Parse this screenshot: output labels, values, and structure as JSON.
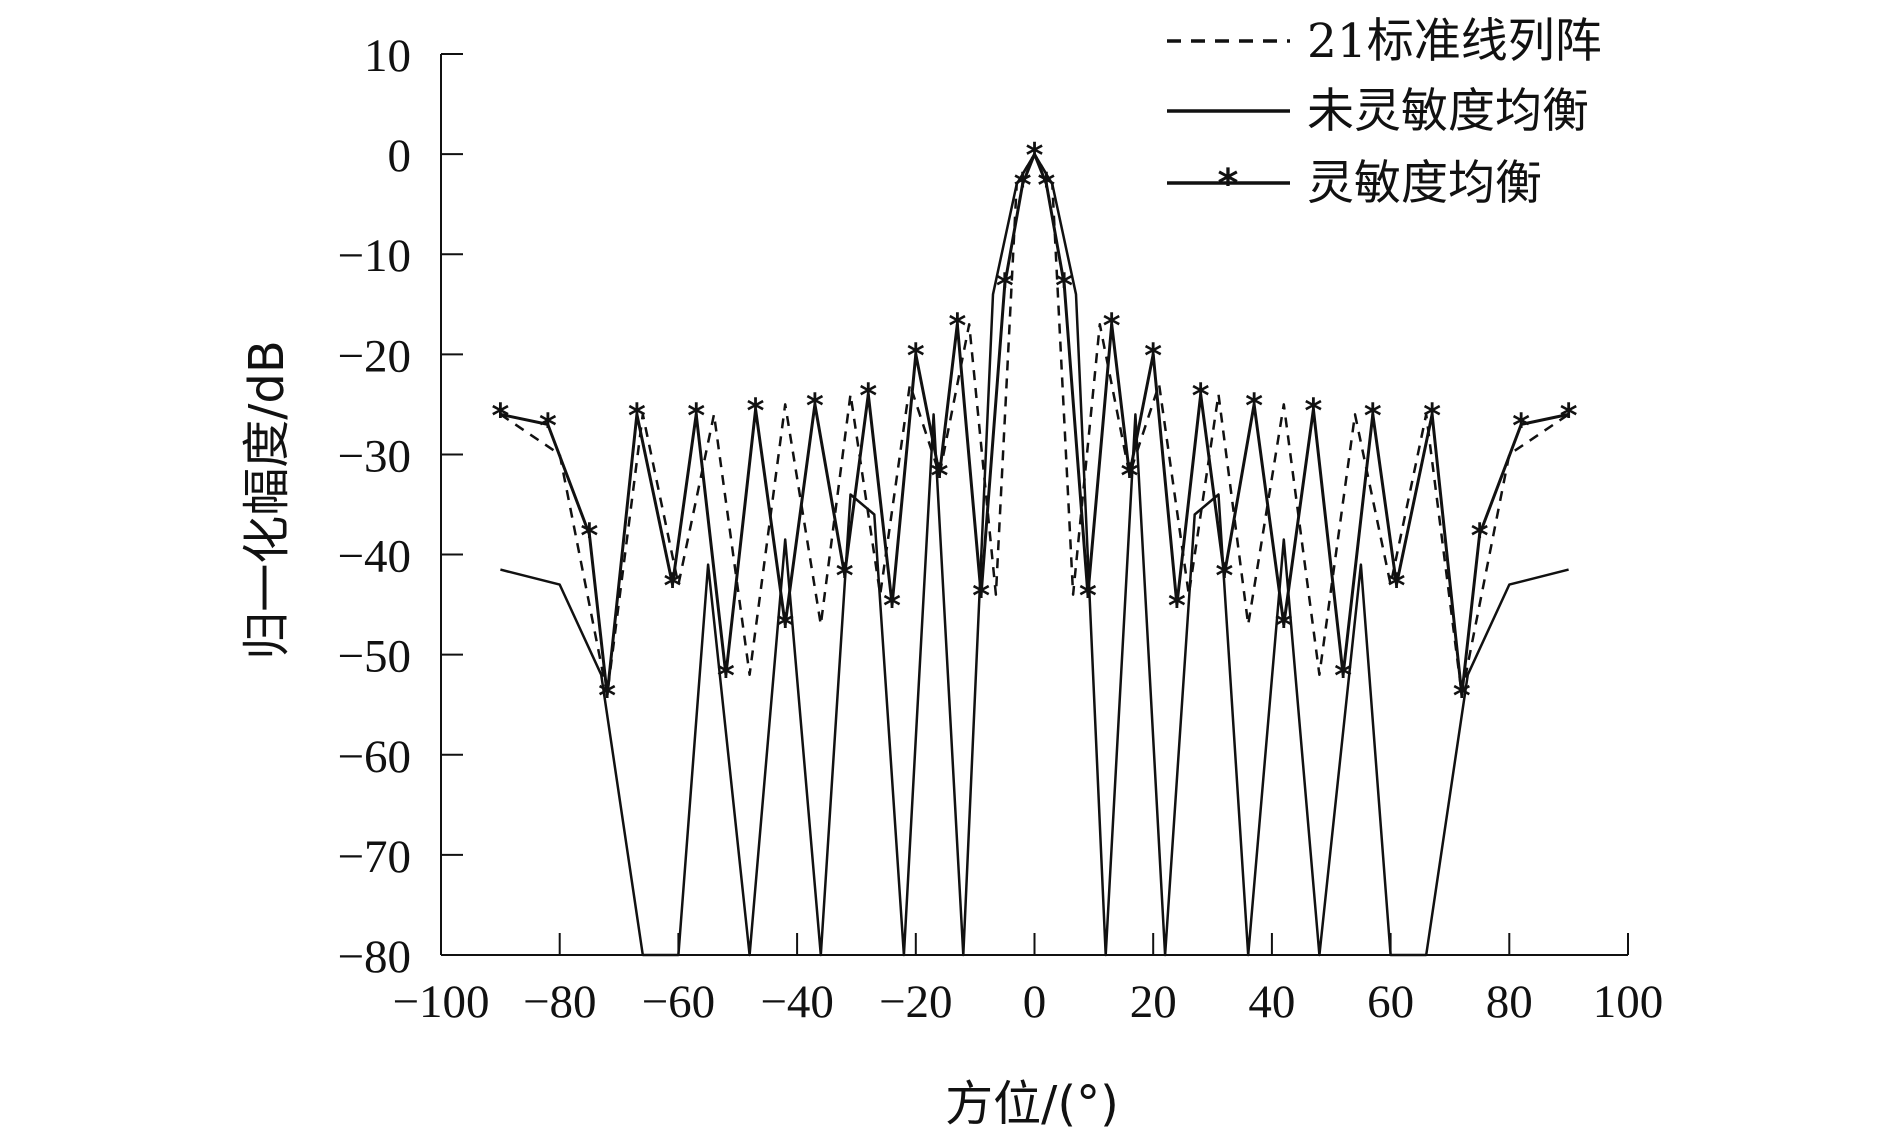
{
  "chart_data": {
    "type": "line",
    "xlabel": "方位/(°)",
    "ylabel": "归一化幅度/dB",
    "xlim": [
      -100,
      100
    ],
    "ylim": [
      -80,
      10
    ],
    "xticks": [
      "−100",
      "−80",
      "−60",
      "−40",
      "−20",
      "0",
      "20",
      "40",
      "60",
      "80",
      "100"
    ],
    "yticks": [
      "10",
      "0",
      "−10",
      "−20",
      "−30",
      "−40",
      "−50",
      "−60",
      "−70",
      "−80"
    ],
    "legend_position": "top-right",
    "series": [
      {
        "name": "21标准线列阵",
        "style": "dashed",
        "x": [
          -90,
          -80,
          -72,
          -66,
          -60,
          -54,
          -48,
          -42,
          -36,
          -31,
          -26,
          -21,
          -16,
          -11,
          -6.5,
          -3,
          0,
          3,
          6.5,
          11,
          16,
          21,
          26,
          31,
          36,
          42,
          48,
          54,
          60,
          66,
          72,
          80,
          90
        ],
        "values": [
          -26,
          -30,
          -54,
          -26,
          -43,
          -26,
          -52,
          -25,
          -47,
          -24,
          -44,
          -23,
          -32,
          -17,
          -44,
          -3,
          0,
          -3,
          -44,
          -17,
          -32,
          -23,
          -44,
          -24,
          -47,
          -25,
          -52,
          -26,
          -43,
          -26,
          -54,
          -30,
          -26
        ]
      },
      {
        "name": "未灵敏度均衡",
        "style": "solid",
        "x": [
          -90,
          -80,
          -73,
          -66,
          -60,
          -55,
          -48,
          -42,
          -36,
          -31,
          -27,
          -22,
          -17,
          -12,
          -7,
          -3,
          0,
          3,
          7,
          12,
          17,
          22,
          27,
          31,
          36,
          42,
          48,
          55,
          60,
          66,
          73,
          80,
          90
        ],
        "values": [
          -41.5,
          -43,
          -52,
          -80,
          -80,
          -41,
          -80,
          -38.5,
          -80,
          -34,
          -36,
          -80,
          -26,
          -80,
          -14,
          -3,
          0,
          -3,
          -14,
          -80,
          -26,
          -80,
          -36,
          -34,
          -80,
          -38.5,
          -80,
          -41,
          -80,
          -80,
          -52,
          -43,
          -41.5
        ]
      },
      {
        "name": "灵敏度均衡",
        "style": "solid-star",
        "x": [
          -90,
          -82,
          -75,
          -72,
          -67,
          -61,
          -57,
          -52,
          -47,
          -42,
          -37,
          -32,
          -28,
          -24,
          -20,
          -16,
          -13,
          -9,
          -5,
          -2,
          0,
          2,
          5,
          9,
          13,
          16,
          20,
          24,
          28,
          32,
          37,
          42,
          47,
          52,
          57,
          61,
          67,
          72,
          75,
          82,
          90
        ],
        "values": [
          -26,
          -27,
          -38,
          -54,
          -26,
          -43,
          -26,
          -52,
          -25.5,
          -47,
          -25,
          -42,
          -24,
          -45,
          -20,
          -32,
          -17,
          -44,
          -13,
          -3,
          0,
          -3,
          -13,
          -44,
          -17,
          -32,
          -20,
          -45,
          -24,
          -42,
          -25,
          -47,
          -25.5,
          -52,
          -26,
          -43,
          -26,
          -54,
          -38,
          -27,
          -26
        ]
      }
    ]
  }
}
